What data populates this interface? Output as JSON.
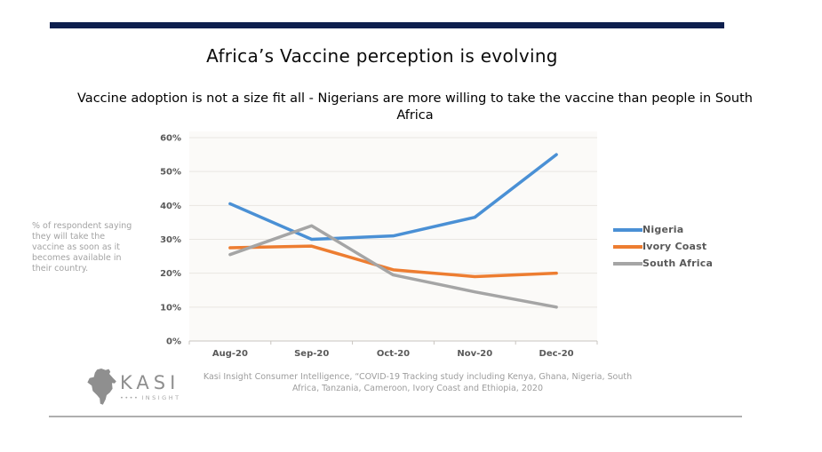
{
  "header": {
    "title": "Africa’s Vaccine perception is evolving",
    "subtitle": "Vaccine adoption is not a size fit all - Nigerians are more willing to take the vaccine than people in South Africa",
    "bar_color": "#0d1f4e"
  },
  "annotation": {
    "text": "% of respondent saying they will take the vaccine as soon as it becomes available in their country."
  },
  "chart_data": {
    "type": "line",
    "categories": [
      "Aug-20",
      "Sep-20",
      "Oct-20",
      "Nov-20",
      "Dec-20"
    ],
    "series": [
      {
        "name": "Nigeria",
        "color": "#4A90D5",
        "values": [
          40.5,
          30,
          31,
          36.5,
          55
        ]
      },
      {
        "name": "Ivory Coast",
        "color": "#ED7D31",
        "values": [
          27.5,
          28,
          21,
          19,
          20
        ]
      },
      {
        "name": "South Africa",
        "color": "#A5A5A5",
        "values": [
          25.5,
          34,
          19.5,
          14.5,
          10
        ]
      }
    ],
    "ylim": [
      0,
      60
    ],
    "ytick_step": 10,
    "ytick_labels": [
      "0%",
      "10%",
      "20%",
      "30%",
      "40%",
      "50%",
      "60%"
    ],
    "grid": true,
    "legend_position": "right",
    "axis_text_color": "#595959",
    "gridline_color": "#e9e6e2",
    "axisline_color": "#c9c5c0"
  },
  "footer": {
    "source": "Kasi Insight Consumer Intelligence, “COVID-19 Tracking study including Kenya, Ghana, Nigeria, South Africa, Tanzania, Cameroon, Ivory Coast and Ethiopia, 2020",
    "logo": {
      "brand": "KASI",
      "dots": "••••",
      "sub": "INSIGHT"
    }
  }
}
